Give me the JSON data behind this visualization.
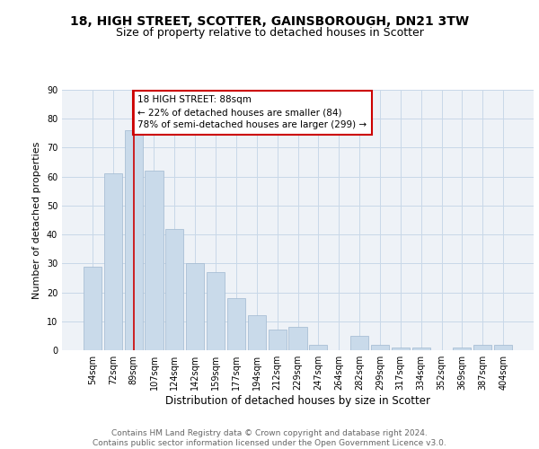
{
  "title1": "18, HIGH STREET, SCOTTER, GAINSBOROUGH, DN21 3TW",
  "title2": "Size of property relative to detached houses in Scotter",
  "xlabel": "Distribution of detached houses by size in Scotter",
  "ylabel": "Number of detached properties",
  "bar_labels": [
    "54sqm",
    "72sqm",
    "89sqm",
    "107sqm",
    "124sqm",
    "142sqm",
    "159sqm",
    "177sqm",
    "194sqm",
    "212sqm",
    "229sqm",
    "247sqm",
    "264sqm",
    "282sqm",
    "299sqm",
    "317sqm",
    "334sqm",
    "352sqm",
    "369sqm",
    "387sqm",
    "404sqm"
  ],
  "bar_values": [
    29,
    61,
    76,
    62,
    42,
    30,
    27,
    18,
    12,
    7,
    8,
    2,
    0,
    5,
    2,
    1,
    1,
    0,
    1,
    2,
    2
  ],
  "bar_color": "#c9daea",
  "bar_edge_color": "#a0b8d0",
  "annotation_line_x_label": "89sqm",
  "annotation_line_color": "#cc0000",
  "annotation_box_text": "18 HIGH STREET: 88sqm\n← 22% of detached houses are smaller (84)\n78% of semi-detached houses are larger (299) →",
  "annotation_box_color": "#cc0000",
  "ylim": [
    0,
    90
  ],
  "yticks": [
    0,
    10,
    20,
    30,
    40,
    50,
    60,
    70,
    80,
    90
  ],
  "grid_color": "#c8d8e8",
  "background_color": "#eef2f7",
  "footer_text": "Contains HM Land Registry data © Crown copyright and database right 2024.\nContains public sector information licensed under the Open Government Licence v3.0.",
  "title1_fontsize": 10,
  "title2_fontsize": 9,
  "xlabel_fontsize": 8.5,
  "ylabel_fontsize": 8,
  "tick_fontsize": 7,
  "annotation_fontsize": 7.5,
  "footer_fontsize": 6.5
}
